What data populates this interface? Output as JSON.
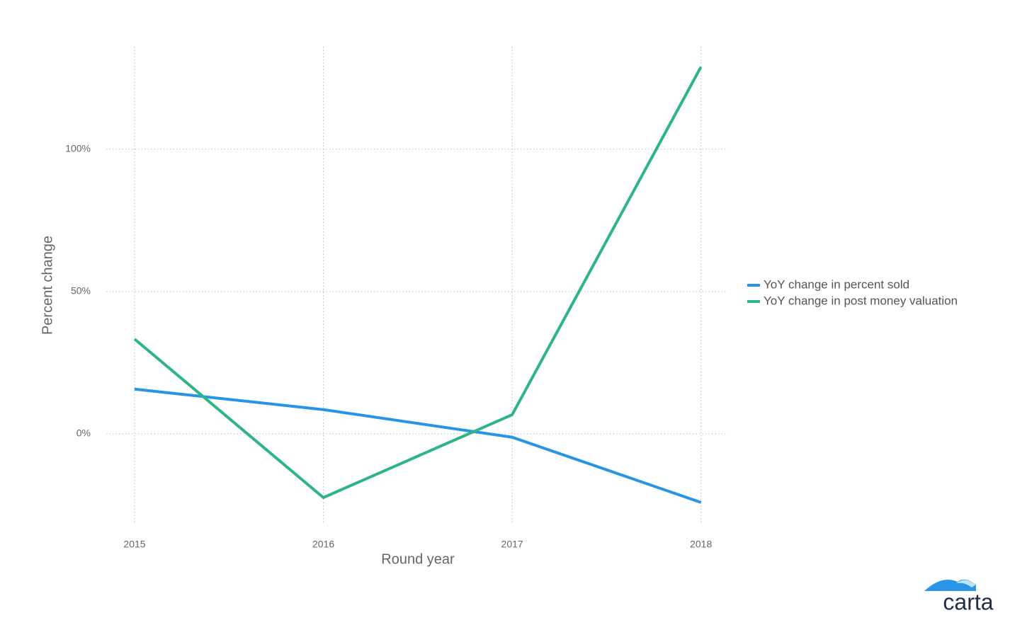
{
  "chart_data": {
    "type": "line",
    "x": [
      2015,
      2016,
      2017,
      2018
    ],
    "series": [
      {
        "name": "YoY change in percent sold",
        "color": "#2794e6",
        "values": [
          15.7,
          8.5,
          -1.2,
          -24.1
        ]
      },
      {
        "name": "YoY change in post money valuation",
        "color": "#2db683",
        "values": [
          33.3,
          -22.4,
          6.7,
          128.9
        ]
      }
    ],
    "xlabel": "Round year",
    "ylabel": "Percent change",
    "xlim": [
      2014.85,
      2018.14
    ],
    "ylim": [
      -31.6,
      136
    ],
    "xticks": [
      2015,
      2016,
      2017,
      2018
    ],
    "yticks": [
      {
        "value": 0,
        "label": "0%"
      },
      {
        "value": 50,
        "label": "50%"
      },
      {
        "value": 100,
        "label": "100%"
      }
    ],
    "grid": true,
    "legend": "right"
  },
  "brand": "carta"
}
